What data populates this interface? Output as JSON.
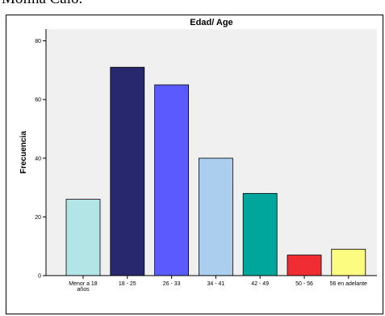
{
  "caption": "Molina Calo.",
  "chart_data": {
    "type": "bar",
    "title": "Edad/ Age",
    "xlabel": "",
    "ylabel": "Frecuencia",
    "ylim": [
      0,
      84
    ],
    "yticks": [
      0,
      20,
      40,
      60,
      80
    ],
    "categories": [
      [
        "Menor a 18",
        "años"
      ],
      [
        "18 - 25"
      ],
      [
        "26 - 33"
      ],
      [
        "34 - 41"
      ],
      [
        "42 - 49"
      ],
      [
        "50 - 56"
      ],
      [
        "56 en adelante"
      ]
    ],
    "values": [
      26,
      71,
      65,
      40,
      28,
      7,
      9
    ],
    "colors": [
      "#b3e5e6",
      "#28286e",
      "#5a5aff",
      "#abcdee",
      "#00a69c",
      "#ef2d33",
      "#fcfc80"
    ],
    "plot_background": "#f0f0f0",
    "grid": false
  }
}
